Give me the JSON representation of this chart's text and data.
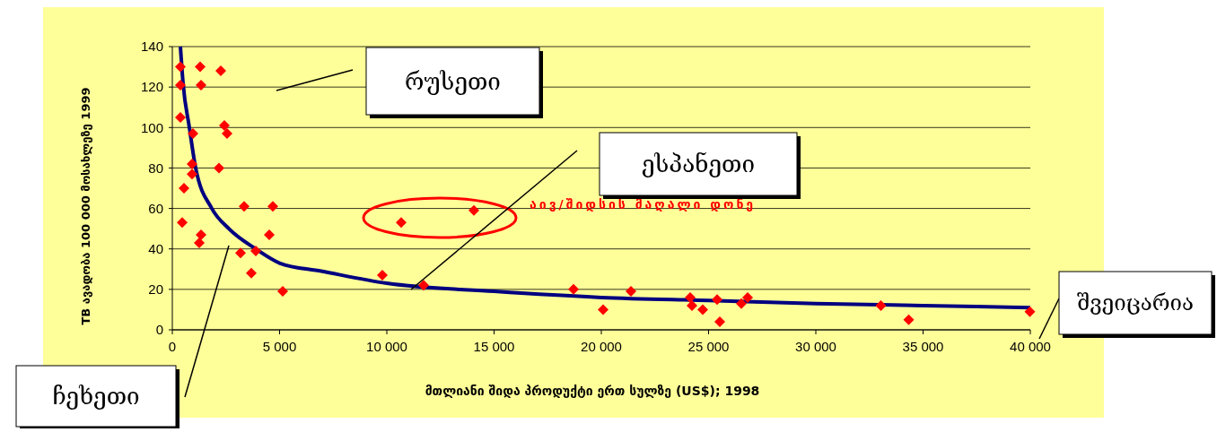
{
  "chart_data": {
    "type": "scatter",
    "xlabel": "მთლიანი შიდა პროდუქტი ერთ სულზე (US$); 1998",
    "ylabel": "TB ავადობა  100 000 მოსახლეზე  1999",
    "xlim": [
      0,
      40000
    ],
    "xticks": [
      0,
      {
        "value": 5000,
        "label": "5 000"
      },
      {
        "value": 10000,
        "label": "10 000"
      },
      {
        "value": 15000,
        "label": "15 000"
      },
      {
        "value": 20000,
        "label": "20 000"
      },
      {
        "value": 25000,
        "label": "25 000"
      },
      {
        "value": 30000,
        "label": "30 000"
      },
      {
        "value": 35000,
        "label": "35 000"
      },
      {
        "value": 40000,
        "label": "40 000"
      }
    ],
    "ylim": [
      0,
      140
    ],
    "yticks": [
      0,
      20,
      40,
      60,
      80,
      100,
      120,
      140
    ],
    "grid": "y",
    "annotations": [
      "რუსეთი",
      "ესპანეთი",
      "შვეიცარია",
      "ჩეხეთი",
      "აივ/შიდსის მაღალი დონე"
    ],
    "series": [
      {
        "color": "#ff0000",
        "marker": "diamond",
        "x": [
          377,
          1297,
          2259,
          377,
          1339,
          377,
          962,
          2427,
          2552,
          920,
          920,
          2176,
          544,
          460,
          1339,
          1255,
          3347,
          4686,
          4519,
          3180,
          3891,
          3682,
          5146,
          9790,
          10669,
          14059,
          11716,
          18703,
          20084,
          21381,
          24142,
          24226,
          24728,
          25397,
          25523,
          26527,
          26820,
          33033,
          34331,
          39979
        ],
        "values": [
          130,
          130,
          128,
          121,
          121,
          105,
          97,
          101,
          97,
          82,
          77,
          80,
          70,
          53,
          47,
          43,
          61,
          61,
          47,
          38,
          39,
          28,
          19,
          27,
          53,
          59,
          22,
          20,
          10,
          19,
          16,
          12,
          10,
          15,
          4,
          13,
          16,
          12,
          5,
          9
        ]
      },
      {
        "type": "line",
        "color": "#000080",
        "marker": "none",
        "x": [
          377,
          500,
          795,
          1088,
          1841,
          2636,
          3891,
          5000,
          6946,
          10000,
          15000,
          20000,
          25000,
          30000,
          35000,
          40000
        ],
        "values": [
          140,
          122,
          100,
          80,
          60,
          50,
          40,
          33,
          29,
          23,
          19,
          16,
          14.5,
          13,
          12,
          11
        ]
      }
    ]
  }
}
